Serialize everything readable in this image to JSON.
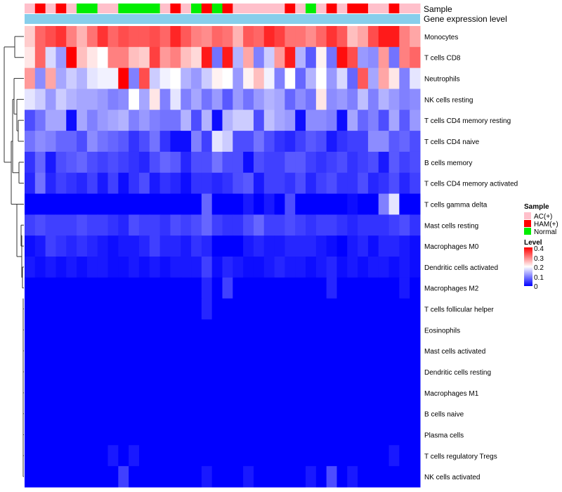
{
  "chart_data": {
    "type": "heatmap",
    "annotation_titles": {
      "sample": "Sample",
      "gene": "Gene expression level"
    },
    "sample_groups": [
      "AC(+)",
      "HAM(+)",
      "Normal"
    ],
    "sample_annotation": [
      "AC(+)",
      "HAM(+)",
      "AC(+)",
      "HAM(+)",
      "AC(+)",
      "Normal",
      "Normal",
      "AC(+)",
      "AC(+)",
      "Normal",
      "Normal",
      "Normal",
      "Normal",
      "AC(+)",
      "HAM(+)",
      "AC(+)",
      "Normal",
      "HAM(+)",
      "Normal",
      "HAM(+)",
      "AC(+)",
      "AC(+)",
      "AC(+)",
      "AC(+)",
      "AC(+)",
      "HAM(+)",
      "AC(+)",
      "Normal",
      "AC(+)",
      "HAM(+)",
      "AC(+)",
      "HAM(+)",
      "HAM(+)",
      "AC(+)",
      "AC(+)",
      "HAM(+)",
      "AC(+)",
      "AC(+)"
    ],
    "rows": [
      {
        "label": "Monocytes",
        "values": [
          0.24,
          0.32,
          0.34,
          0.36,
          0.3,
          0.26,
          0.31,
          0.36,
          0.32,
          0.34,
          0.33,
          0.33,
          0.34,
          0.32,
          0.37,
          0.33,
          0.3,
          0.29,
          0.32,
          0.31,
          0.26,
          0.33,
          0.32,
          0.37,
          0.35,
          0.31,
          0.31,
          0.29,
          0.32,
          0.36,
          0.33,
          0.25,
          0.27,
          0.34,
          0.38,
          0.38,
          0.3,
          0.27
        ]
      },
      {
        "label": "T cells CD8",
        "values": [
          0.22,
          0.32,
          0.17,
          0.12,
          0.4,
          0.25,
          0.22,
          0.2,
          0.3,
          0.3,
          0.25,
          0.24,
          0.35,
          0.28,
          0.3,
          0.25,
          0.23,
          0.38,
          0.09,
          0.38,
          0.14,
          0.27,
          0.1,
          0.16,
          0.28,
          0.38,
          0.14,
          0.07,
          0.21,
          0.09,
          0.39,
          0.34,
          0.12,
          0.11,
          0.28,
          0.09,
          0.3,
          0.32
        ]
      },
      {
        "label": "Neutrophils",
        "values": [
          0.28,
          0.11,
          0.27,
          0.13,
          0.16,
          0.14,
          0.18,
          0.19,
          0.19,
          0.41,
          0.1,
          0.34,
          0.16,
          0.19,
          0.2,
          0.14,
          0.12,
          0.16,
          0.21,
          0.2,
          0.12,
          0.21,
          0.25,
          0.19,
          0.1,
          0.2,
          0.08,
          0.14,
          0.2,
          0.12,
          0.17,
          0.08,
          0.33,
          0.13,
          0.27,
          0.22,
          0.1,
          0.18
        ]
      },
      {
        "label": "NK cells resting",
        "values": [
          0.18,
          0.16,
          0.12,
          0.16,
          0.14,
          0.13,
          0.13,
          0.12,
          0.1,
          0.11,
          0.2,
          0.13,
          0.22,
          0.1,
          0.18,
          0.1,
          0.13,
          0.09,
          0.12,
          0.07,
          0.12,
          0.09,
          0.12,
          0.14,
          0.13,
          0.08,
          0.11,
          0.09,
          0.22,
          0.11,
          0.12,
          0.1,
          0.15,
          0.1,
          0.14,
          0.12,
          0.1,
          0.11
        ]
      },
      {
        "label": "T cells CD4 memory resting",
        "values": [
          0.06,
          0.09,
          0.13,
          0.13,
          0.01,
          0.13,
          0.1,
          0.12,
          0.13,
          0.14,
          0.1,
          0.12,
          0.1,
          0.09,
          0.09,
          0.14,
          0.06,
          0.14,
          0.01,
          0.14,
          0.16,
          0.16,
          0.06,
          0.15,
          0.13,
          0.12,
          0.01,
          0.11,
          0.11,
          0.1,
          0.01,
          0.13,
          0.08,
          0.1,
          0.06,
          0.13,
          0.07,
          0.12
        ]
      },
      {
        "label": "T cells CD4 naive",
        "values": [
          0.09,
          0.11,
          0.1,
          0.08,
          0.08,
          0.06,
          0.11,
          0.09,
          0.08,
          0.07,
          0.04,
          0.06,
          0.09,
          0.04,
          0.01,
          0.01,
          0.1,
          0.05,
          0.18,
          0.16,
          0.06,
          0.06,
          0.09,
          0.06,
          0.04,
          0.03,
          0.05,
          0.07,
          0.06,
          0.02,
          0.04,
          0.05,
          0.05,
          0.11,
          0.11,
          0.07,
          0.08,
          0.06
        ]
      },
      {
        "label": "B cells memory",
        "values": [
          0.04,
          0.08,
          0.02,
          0.06,
          0.07,
          0.08,
          0.06,
          0.05,
          0.06,
          0.05,
          0.04,
          0.03,
          0.06,
          0.08,
          0.07,
          0.03,
          0.06,
          0.06,
          0.09,
          0.06,
          0.06,
          0.01,
          0.06,
          0.05,
          0.05,
          0.07,
          0.07,
          0.05,
          0.04,
          0.05,
          0.06,
          0.04,
          0.05,
          0.06,
          0.02,
          0.07,
          0.05,
          0.06
        ]
      },
      {
        "label": "T cells CD4 memory activated",
        "values": [
          0.03,
          0.09,
          0.03,
          0.05,
          0.04,
          0.03,
          0.05,
          0.02,
          0.05,
          0.01,
          0.04,
          0.06,
          0.02,
          0.04,
          0.03,
          0.01,
          0.04,
          0.04,
          0.03,
          0.04,
          0.06,
          0.07,
          0.02,
          0.05,
          0.05,
          0.04,
          0.06,
          0.03,
          0.05,
          0.06,
          0.04,
          0.04,
          0.06,
          0.03,
          0.04,
          0.06,
          0.03,
          0.05
        ]
      },
      {
        "label": "T cells gamma delta",
        "values": [
          0,
          0,
          0,
          0,
          0,
          0,
          0,
          0,
          0,
          0,
          0,
          0,
          0,
          0,
          0,
          0,
          0,
          0.08,
          0,
          0,
          0,
          0.02,
          0,
          0.02,
          0,
          0.06,
          0,
          0,
          0,
          0,
          0,
          0.01,
          0,
          0,
          0.1,
          0.18,
          0,
          0
        ]
      },
      {
        "label": "Mast cells resting",
        "values": [
          0.05,
          0.06,
          0.05,
          0.05,
          0.05,
          0.06,
          0.05,
          0.05,
          0.04,
          0.03,
          0.06,
          0.05,
          0.05,
          0.04,
          0.06,
          0.05,
          0.06,
          0.08,
          0.05,
          0.04,
          0.04,
          0.06,
          0.08,
          0.05,
          0.05,
          0.06,
          0.05,
          0.04,
          0.05,
          0.05,
          0.04,
          0.03,
          0.04,
          0.04,
          0.04,
          0.05,
          0.06,
          0.04
        ]
      },
      {
        "label": "Macrophages M0",
        "values": [
          0.01,
          0.02,
          0.05,
          0.04,
          0.03,
          0.04,
          0.03,
          0.02,
          0.01,
          0.02,
          0.02,
          0.03,
          0.05,
          0.03,
          0.03,
          0.02,
          0.04,
          0.03,
          0,
          0,
          0,
          0.02,
          0.03,
          0.02,
          0.02,
          0.03,
          0.03,
          0.03,
          0.02,
          0.01,
          0,
          0.02,
          0.03,
          0.01,
          0.03,
          0.03,
          0.02,
          0.01
        ]
      },
      {
        "label": "Dendritic cells activated",
        "values": [
          0.02,
          0.01,
          0.02,
          0.01,
          0.02,
          0.01,
          0.02,
          0.02,
          0.01,
          0.01,
          0.02,
          0.01,
          0.02,
          0.01,
          0.02,
          0.02,
          0.02,
          0.05,
          0.01,
          0.03,
          0.02,
          0.01,
          0.01,
          0.02,
          0.03,
          0.02,
          0.02,
          0.01,
          0.02,
          0.03,
          0.01,
          0.02,
          0.01,
          0.02,
          0.02,
          0.01,
          0.02,
          0.01
        ]
      },
      {
        "label": "Macrophages M2",
        "values": [
          0,
          0,
          0,
          0,
          0,
          0,
          0,
          0,
          0,
          0,
          0,
          0,
          0,
          0,
          0,
          0,
          0,
          0.03,
          0,
          0.05,
          0,
          0,
          0,
          0,
          0,
          0,
          0,
          0,
          0,
          0.03,
          0,
          0,
          0,
          0,
          0,
          0,
          0.02,
          0
        ]
      },
      {
        "label": "T cells follicular helper",
        "values": [
          0,
          0,
          0,
          0,
          0,
          0,
          0,
          0,
          0,
          0,
          0,
          0,
          0,
          0,
          0,
          0,
          0,
          0.03,
          0,
          0,
          0,
          0,
          0,
          0,
          0,
          0,
          0,
          0,
          0,
          0,
          0,
          0,
          0,
          0,
          0,
          0,
          0,
          0
        ]
      },
      {
        "label": "Eosinophils",
        "values": [
          0,
          0,
          0,
          0,
          0,
          0,
          0,
          0,
          0,
          0,
          0,
          0,
          0,
          0,
          0,
          0,
          0,
          0,
          0,
          0,
          0,
          0,
          0,
          0,
          0,
          0,
          0,
          0,
          0,
          0,
          0,
          0,
          0,
          0,
          0,
          0,
          0,
          0
        ]
      },
      {
        "label": "Mast cells activated",
        "values": [
          0,
          0,
          0,
          0,
          0,
          0,
          0,
          0,
          0,
          0,
          0,
          0,
          0,
          0,
          0,
          0,
          0,
          0,
          0,
          0,
          0,
          0,
          0,
          0,
          0,
          0,
          0,
          0,
          0,
          0,
          0,
          0,
          0,
          0,
          0,
          0,
          0,
          0
        ]
      },
      {
        "label": "Dendritic cells resting",
        "values": [
          0,
          0,
          0,
          0,
          0,
          0,
          0,
          0,
          0,
          0,
          0,
          0,
          0,
          0,
          0,
          0,
          0,
          0,
          0,
          0,
          0,
          0,
          0,
          0,
          0,
          0,
          0,
          0,
          0,
          0,
          0,
          0,
          0,
          0,
          0,
          0,
          0,
          0
        ]
      },
      {
        "label": "Macrophages M1",
        "values": [
          0,
          0,
          0,
          0,
          0,
          0,
          0,
          0,
          0,
          0,
          0,
          0,
          0,
          0,
          0,
          0,
          0,
          0,
          0,
          0,
          0,
          0,
          0,
          0,
          0,
          0,
          0,
          0,
          0,
          0,
          0,
          0,
          0,
          0,
          0,
          0,
          0,
          0
        ]
      },
      {
        "label": "B cells naive",
        "values": [
          0,
          0,
          0,
          0,
          0,
          0,
          0,
          0,
          0,
          0,
          0,
          0,
          0,
          0,
          0,
          0,
          0,
          0,
          0,
          0,
          0,
          0,
          0,
          0,
          0,
          0,
          0,
          0,
          0,
          0,
          0,
          0,
          0,
          0,
          0,
          0,
          0,
          0
        ]
      },
      {
        "label": "Plasma cells",
        "values": [
          0,
          0,
          0,
          0,
          0,
          0,
          0,
          0,
          0,
          0,
          0,
          0,
          0,
          0,
          0,
          0,
          0,
          0,
          0,
          0,
          0,
          0,
          0,
          0,
          0,
          0,
          0,
          0,
          0,
          0,
          0,
          0,
          0,
          0,
          0,
          0,
          0,
          0
        ]
      },
      {
        "label": "T cells regulatory  Tregs",
        "values": [
          0,
          0,
          0,
          0,
          0,
          0,
          0,
          0,
          0.02,
          0,
          0.02,
          0,
          0,
          0,
          0,
          0,
          0,
          0,
          0,
          0,
          0,
          0,
          0,
          0,
          0,
          0,
          0,
          0,
          0,
          0,
          0,
          0,
          0,
          0,
          0,
          0.02,
          0,
          0
        ]
      },
      {
        "label": "NK cells activated",
        "values": [
          0,
          0,
          0,
          0,
          0,
          0,
          0,
          0,
          0,
          0.05,
          0,
          0,
          0,
          0,
          0,
          0,
          0,
          0.02,
          0,
          0,
          0,
          0.02,
          0,
          0,
          0,
          0,
          0,
          0.02,
          0,
          0.06,
          0,
          0.02,
          0,
          0,
          0,
          0,
          0,
          0
        ]
      }
    ],
    "value_range": [
      0,
      0.4
    ],
    "legend": {
      "sample_title": "Sample",
      "level_title": "Level",
      "ticks": [
        "0.4",
        "0.3",
        "0.2",
        "0.1",
        "0"
      ],
      "position": "right"
    }
  },
  "colors": {
    "AC(+)": "#ffc0cb",
    "HAM(+)": "#ff0000",
    "Normal": "#00ee00",
    "gene_bar": "#87ceeb",
    "scale_low": "#0000ff",
    "scale_mid": "#ffffff",
    "scale_high": "#ff0000"
  }
}
